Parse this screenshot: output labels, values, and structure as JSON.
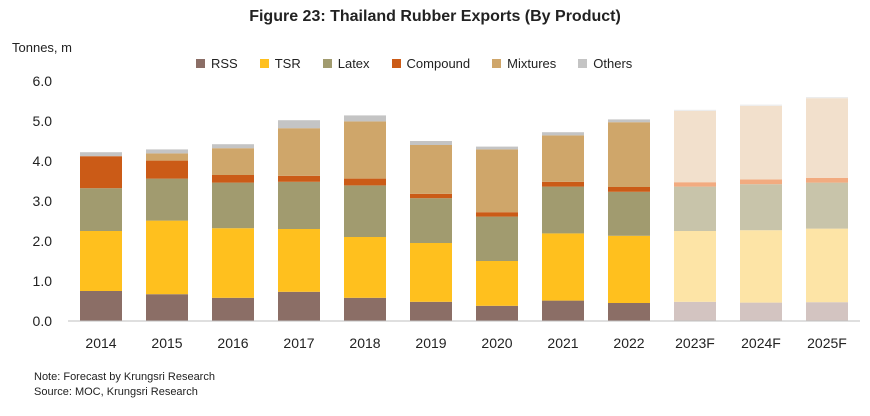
{
  "figure_title": "Figure 23: Thailand  Rubber Exports (By Product)",
  "notes": {
    "forecast_note": "Note: Forecast by Krungsri Research",
    "source_note": "Source: MOC, Krungsri Research"
  },
  "chart_data": {
    "type": "bar",
    "stacked": true,
    "title": "Figure 23: Thailand  Rubber Exports (By Product)",
    "ylabel": "Tonnes, m",
    "xlabel": "",
    "ylim": [
      0,
      6
    ],
    "yticks": [
      "0.0",
      "1.0",
      "2.0",
      "3.0",
      "4.0",
      "5.0",
      "6.0"
    ],
    "grid": false,
    "legend_position": "top",
    "categories": [
      "2014",
      "2015",
      "2016",
      "2017",
      "2018",
      "2019",
      "2020",
      "2021",
      "2022",
      "2023F",
      "2024F",
      "2025F"
    ],
    "forecast_categories": [
      "2023F",
      "2024F",
      "2025F"
    ],
    "series": [
      {
        "name": "RSS",
        "color": "#8b6e66",
        "forecast_color": "#d3c4c1",
        "values": [
          0.75,
          0.67,
          0.58,
          0.73,
          0.58,
          0.48,
          0.38,
          0.51,
          0.45,
          0.48,
          0.46,
          0.47
        ]
      },
      {
        "name": "TSR",
        "color": "#ffc01e",
        "forecast_color": "#fde4a6",
        "values": [
          1.5,
          1.84,
          1.74,
          1.57,
          1.52,
          1.47,
          1.12,
          1.68,
          1.68,
          1.77,
          1.81,
          1.84
        ]
      },
      {
        "name": "Latex",
        "color": "#a19b6f",
        "forecast_color": "#c8c4aa",
        "values": [
          1.07,
          1.05,
          1.14,
          1.18,
          1.29,
          1.12,
          1.11,
          1.17,
          1.1,
          1.11,
          1.15,
          1.15
        ]
      },
      {
        "name": "Compound",
        "color": "#cb5b17",
        "forecast_color": "#f2ab80",
        "values": [
          0.8,
          0.45,
          0.19,
          0.15,
          0.17,
          0.11,
          0.11,
          0.12,
          0.12,
          0.11,
          0.12,
          0.12
        ]
      },
      {
        "name": "Mixtures",
        "color": "#cfa66a",
        "forecast_color": "#f2e0cc",
        "values": [
          0.0,
          0.18,
          0.67,
          1.19,
          1.43,
          1.22,
          1.57,
          1.16,
          1.62,
          1.78,
          1.84,
          1.99
        ]
      },
      {
        "name": "Others",
        "color": "#c4c4c4",
        "forecast_color": "#ececec",
        "values": [
          0.1,
          0.1,
          0.1,
          0.2,
          0.15,
          0.1,
          0.07,
          0.08,
          0.07,
          0.03,
          0.03,
          0.03
        ]
      }
    ]
  }
}
